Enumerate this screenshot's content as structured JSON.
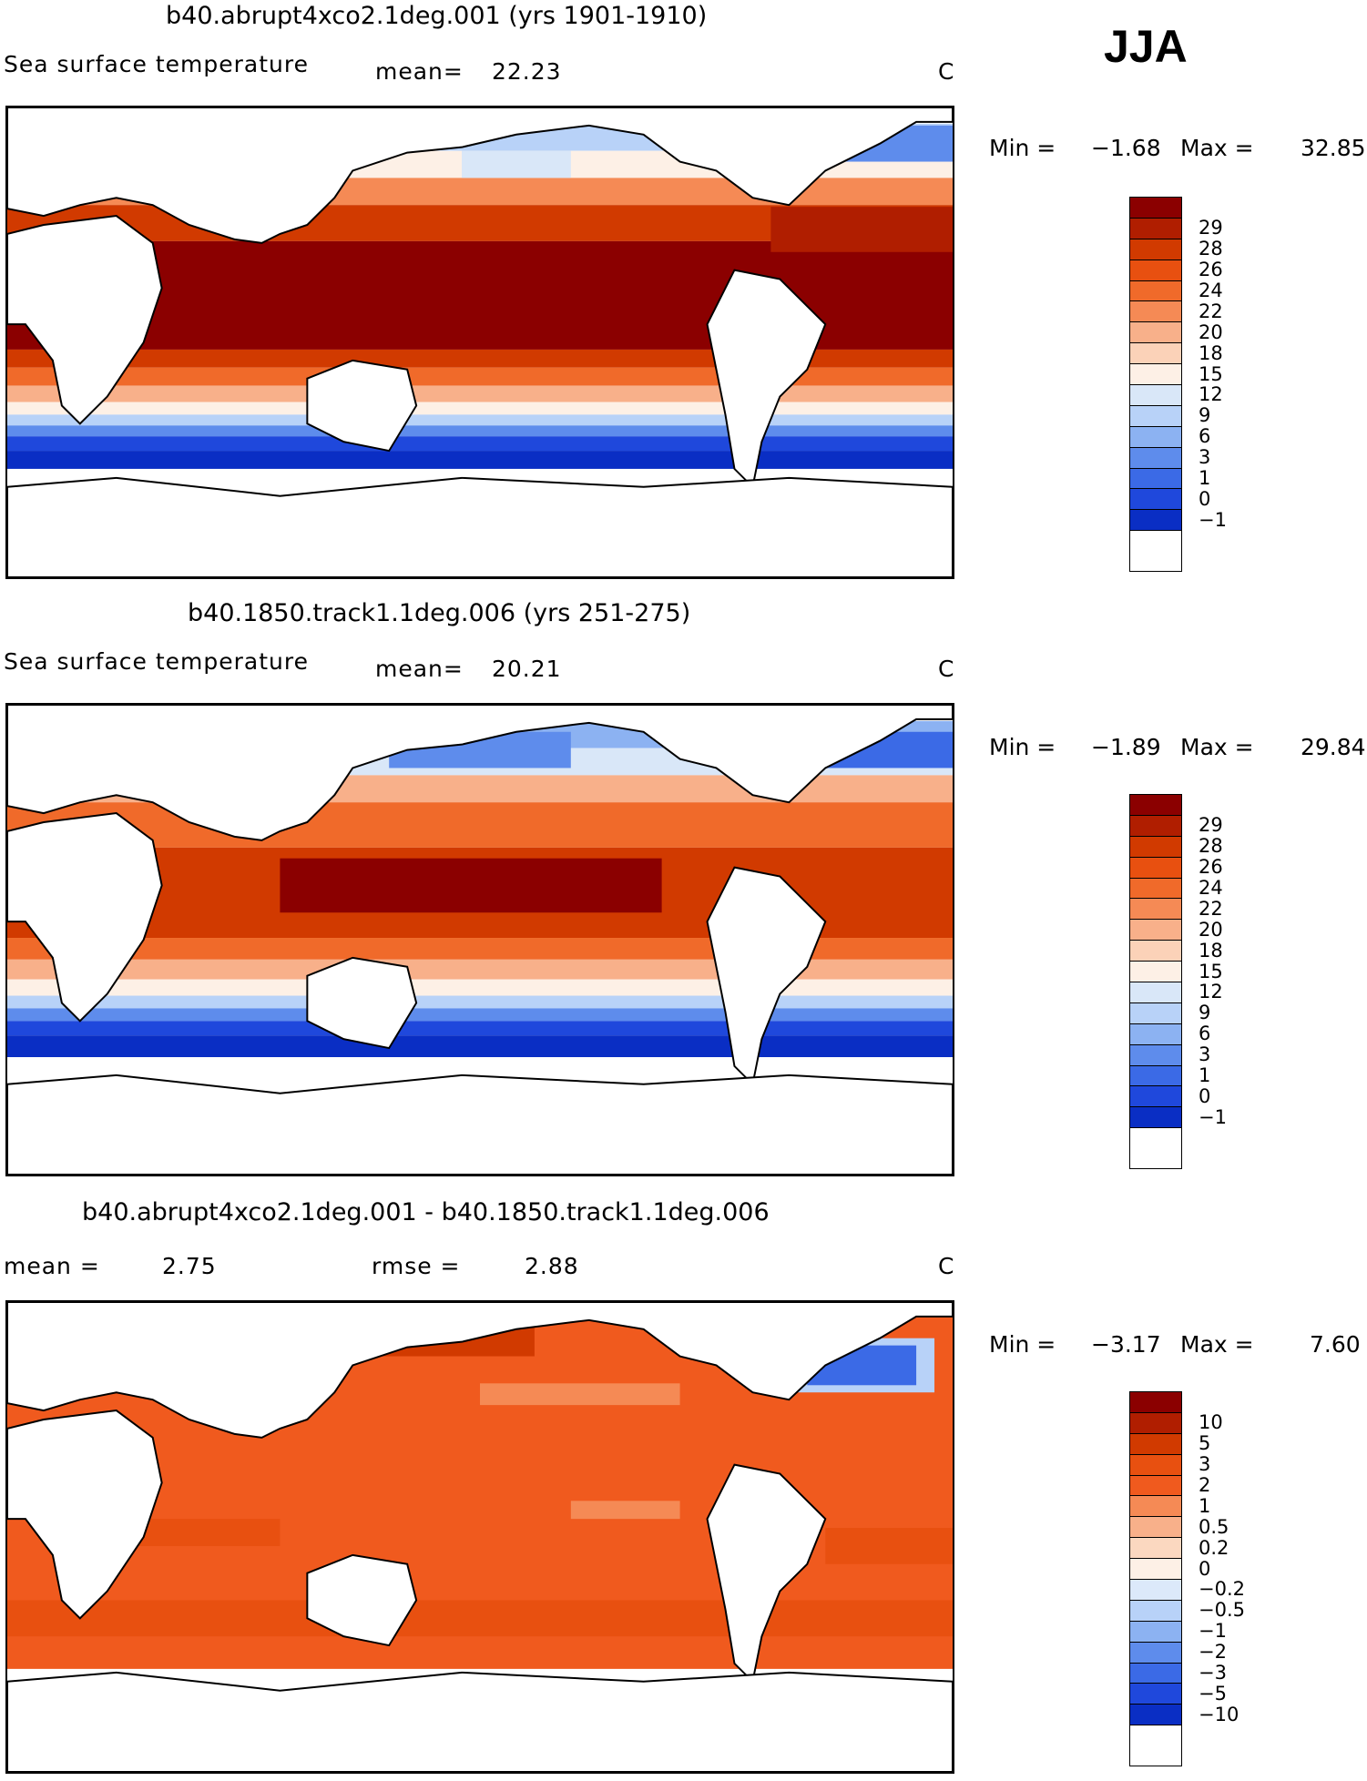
{
  "season_label": "JJA",
  "units": "C",
  "panels": [
    {
      "title": "b40.abrupt4xco2.1deg.001 (yrs 1901-1910)",
      "variable": "Sea surface temperature",
      "stat1_label": "mean=",
      "stat1_value": "22.23",
      "min_label": "Min =",
      "min_value": "−1.68",
      "max_label": "Max =",
      "max_value": "32.85",
      "legend_labels": [
        "29",
        "28",
        "26",
        "24",
        "22",
        "20",
        "18",
        "15",
        "12",
        "9",
        "6",
        "3",
        "1",
        "0",
        "−1"
      ],
      "legend_colors": [
        "#8b0000",
        "#b01e00",
        "#d13a00",
        "#e85010",
        "#f06a2a",
        "#f58a55",
        "#f8b08a",
        "#fbd2b8",
        "#fdf0e6",
        "#d9e7f8",
        "#b8d2f8",
        "#8cb2f2",
        "#5e8cec",
        "#3b6ae6",
        "#1f48dc",
        "#0a2ec4",
        "#061b9c",
        "#02107a"
      ]
    },
    {
      "title": "b40.1850.track1.1deg.006 (yrs 251-275)",
      "variable": "Sea surface temperature",
      "stat1_label": "mean=",
      "stat1_value": "20.21",
      "min_label": "Min =",
      "min_value": "−1.89",
      "max_label": "Max =",
      "max_value": "29.84",
      "legend_labels": [
        "29",
        "28",
        "26",
        "24",
        "22",
        "20",
        "18",
        "15",
        "12",
        "9",
        "6",
        "3",
        "1",
        "0",
        "−1"
      ],
      "legend_colors": [
        "#8b0000",
        "#b01e00",
        "#d13a00",
        "#e85010",
        "#f06a2a",
        "#f58a55",
        "#f8b08a",
        "#fbd2b8",
        "#fdf0e6",
        "#d9e7f8",
        "#b8d2f8",
        "#8cb2f2",
        "#5e8cec",
        "#3b6ae6",
        "#1f48dc",
        "#0a2ec4",
        "#061b9c",
        "#02107a"
      ]
    },
    {
      "title": "b40.abrupt4xco2.1deg.001 - b40.1850.track1.1deg.006",
      "stat1_label": "mean =",
      "stat1_value": "2.75",
      "stat2_label": "rmse =",
      "stat2_value": "2.88",
      "min_label": "Min =",
      "min_value": "−3.17",
      "max_label": "Max =",
      "max_value": "7.60",
      "legend_labels": [
        "10",
        "5",
        "3",
        "2",
        "1",
        "0.5",
        "0.2",
        "0",
        "−0.2",
        "−0.5",
        "−1",
        "−2",
        "−3",
        "−5",
        "−10"
      ],
      "legend_colors": [
        "#8b0000",
        "#b01e00",
        "#d13a00",
        "#e85010",
        "#f05a1e",
        "#f58a55",
        "#f8b08a",
        "#fbd8c0",
        "#fdf0e6",
        "#dce9fa",
        "#b8d2f8",
        "#8cb2f2",
        "#5e8cec",
        "#3b6ae6",
        "#1f48dc",
        "#0a2ec4",
        "#061b9c",
        "#02107a"
      ]
    }
  ]
}
